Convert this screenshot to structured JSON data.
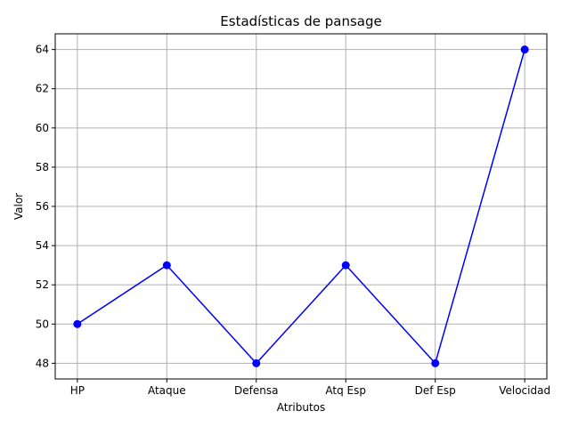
{
  "chart_data": {
    "type": "line",
    "title": "Estadísticas de pansage",
    "xlabel": "Atributos",
    "ylabel": "Valor",
    "categories": [
      "HP",
      "Ataque",
      "Defensa",
      "Atq Esp",
      "Def Esp",
      "Velocidad"
    ],
    "series": [
      {
        "values": [
          50,
          53,
          48,
          53,
          48,
          64
        ],
        "color": "#0000ff",
        "marker": "circle"
      }
    ],
    "ylim": [
      47.2,
      64.8
    ],
    "yticks": [
      48,
      50,
      52,
      54,
      56,
      58,
      60,
      62,
      64
    ],
    "grid": true
  }
}
